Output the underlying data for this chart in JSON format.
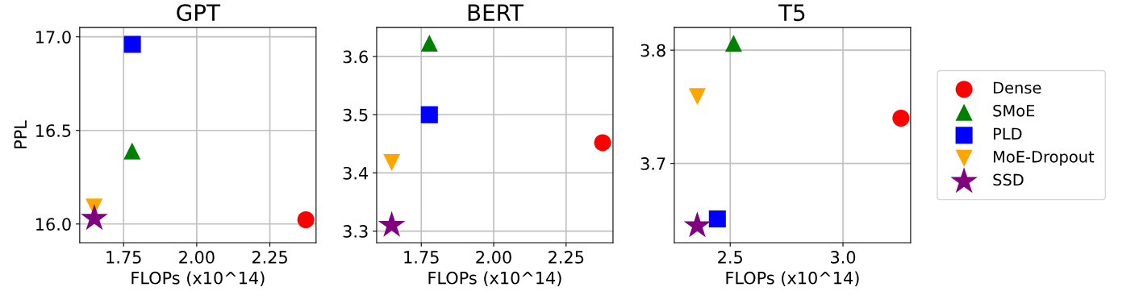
{
  "chart_data": [
    {
      "type": "scatter",
      "title": "GPT",
      "xlabel": "FLOPs (x10^14)",
      "ylabel": "PPL",
      "xlim": [
        1.6,
        2.408
      ],
      "ylim": [
        15.9,
        17.05
      ],
      "xticks": [
        {
          "value": 1.75,
          "label": "1.75"
        },
        {
          "value": 2.0,
          "label": "2.00"
        },
        {
          "value": 2.25,
          "label": "2.25"
        }
      ],
      "yticks": [
        {
          "value": 16.0,
          "label": "16.0"
        },
        {
          "value": 16.5,
          "label": "16.5"
        },
        {
          "value": 17.0,
          "label": "17.0"
        }
      ],
      "grid": true,
      "legend": false,
      "series": [
        {
          "color": "#ff0000",
          "marker": "circle",
          "x": [
            2.373
          ],
          "values": [
            16.023
          ]
        },
        {
          "color": "#008000",
          "marker": "triangle",
          "x": [
            1.779
          ],
          "values": [
            16.39
          ]
        },
        {
          "color": "#0000ff",
          "marker": "square",
          "x": [
            1.78
          ],
          "values": [
            16.96
          ]
        },
        {
          "color": "#ffa500",
          "marker": "triangle_down",
          "x": [
            1.649
          ],
          "values": [
            16.09
          ]
        },
        {
          "color": "#800080",
          "marker": "star",
          "x": [
            1.65
          ],
          "values": [
            16.03
          ]
        }
      ]
    },
    {
      "type": "scatter",
      "title": "BERT",
      "xlabel": "FLOPs (x10^14)",
      "xlim": [
        1.596,
        2.412
      ],
      "ylim": [
        3.28,
        3.65
      ],
      "xticks": [
        {
          "value": 1.75,
          "label": "1.75"
        },
        {
          "value": 2.0,
          "label": "2.00"
        },
        {
          "value": 2.25,
          "label": "2.25"
        }
      ],
      "yticks": [
        3.3,
        3.4,
        3.5,
        3.6
      ],
      "grid": true,
      "legend": false,
      "series": [
        {
          "color": "#ff0000",
          "marker": "circle",
          "x": [
            2.376
          ],
          "values": [
            3.452
          ]
        },
        {
          "color": "#008000",
          "marker": "triangle",
          "x": [
            1.778
          ],
          "values": [
            3.623
          ]
        },
        {
          "color": "#0000ff",
          "marker": "square",
          "x": [
            1.778
          ],
          "values": [
            3.5
          ]
        },
        {
          "color": "#ffa500",
          "marker": "triangle_down",
          "x": [
            1.648
          ],
          "values": [
            3.418
          ]
        },
        {
          "color": "#800080",
          "marker": "star",
          "x": [
            1.648
          ],
          "values": [
            3.31
          ]
        }
      ]
    },
    {
      "type": "scatter",
      "title": "T5",
      "xlabel": "FLOPs (x10^14)",
      "xlim": [
        2.252,
        3.3
      ],
      "ylim": [
        3.63,
        3.82
      ],
      "xticks": [
        2.5,
        {
          "value": 3.0,
          "label": "3.0"
        }
      ],
      "yticks": [
        3.7,
        3.8
      ],
      "grid": true,
      "legend": "right",
      "series": [
        {
          "name": "Dense",
          "color": "#ff0000",
          "marker": "circle",
          "x": [
            3.257
          ],
          "values": [
            3.74
          ]
        },
        {
          "name": "SMoE",
          "color": "#008000",
          "marker": "triangle",
          "x": [
            2.515
          ],
          "values": [
            3.806
          ]
        },
        {
          "name": "PLD",
          "color": "#0000ff",
          "marker": "square",
          "x": [
            2.443
          ],
          "values": [
            3.651
          ]
        },
        {
          "name": "MoE-Dropout",
          "color": "#ffa500",
          "marker": "triangle_down",
          "x": [
            2.354
          ],
          "values": [
            3.759
          ]
        },
        {
          "name": "SSD",
          "color": "#800080",
          "marker": "star",
          "x": [
            2.354
          ],
          "values": [
            3.645
          ]
        }
      ]
    }
  ]
}
